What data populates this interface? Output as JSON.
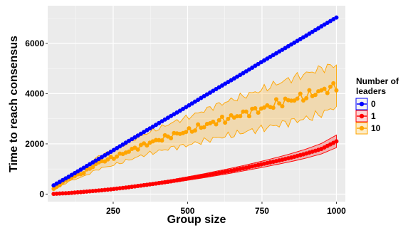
{
  "chart_data": {
    "type": "line",
    "title": "",
    "xlabel": "Group size",
    "ylabel": "Time to reach consensus",
    "xlim": [
      30,
      1030
    ],
    "ylim": [
      -300,
      7500
    ],
    "x_ticks": [
      250,
      500,
      750,
      1000
    ],
    "y_ticks": [
      0,
      2000,
      4000,
      6000
    ],
    "grid": true,
    "legend": {
      "title_lines": [
        "Number of",
        "leaders"
      ],
      "placement": "right",
      "entries": [
        "0",
        "1",
        "10"
      ]
    },
    "colors": {
      "0": "#0000ff",
      "1": "#ff0000",
      "10": "#ffa500",
      "panel": "#ebebeb",
      "grid": "#ffffff"
    },
    "x": [
      50,
      100,
      150,
      200,
      250,
      300,
      350,
      400,
      450,
      500,
      550,
      600,
      650,
      700,
      750,
      800,
      850,
      900,
      950,
      1000
    ],
    "series": [
      {
        "name": "0",
        "color": "#0000ff",
        "values": [
          350,
          690,
          1040,
          1390,
          1740,
          2100,
          2450,
          2800,
          3150,
          3500,
          3860,
          4210,
          4560,
          4910,
          5270,
          5620,
          5970,
          6320,
          6680,
          7030
        ]
      },
      {
        "name": "1",
        "color": "#ff0000",
        "values": [
          10,
          40,
          90,
          140,
          200,
          270,
          350,
          430,
          520,
          620,
          720,
          830,
          940,
          1060,
          1190,
          1320,
          1460,
          1620,
          1800,
          2100
        ],
        "lower": [
          0,
          25,
          70,
          110,
          165,
          230,
          300,
          380,
          460,
          550,
          640,
          740,
          840,
          950,
          1060,
          1180,
          1300,
          1440,
          1600,
          1850
        ],
        "upper": [
          20,
          60,
          115,
          170,
          240,
          310,
          400,
          490,
          580,
          690,
          800,
          920,
          1040,
          1170,
          1310,
          1460,
          1620,
          1800,
          2020,
          2350
        ]
      },
      {
        "name": "10",
        "color": "#ffa500",
        "values": [
          200,
          620,
          850,
          1250,
          1450,
          1700,
          1950,
          2150,
          2350,
          2500,
          2700,
          2900,
          3050,
          3250,
          3400,
          3600,
          3750,
          3900,
          4100,
          4300
        ],
        "lower": [
          150,
          500,
          700,
          1000,
          1150,
          1350,
          1550,
          1700,
          1850,
          1950,
          2100,
          2250,
          2350,
          2500,
          2600,
          2750,
          2900,
          3000,
          3200,
          3500
        ],
        "upper": [
          260,
          750,
          1050,
          1500,
          1750,
          2050,
          2350,
          2600,
          2850,
          3050,
          3300,
          3550,
          3750,
          3950,
          4150,
          4400,
          4600,
          4800,
          5000,
          5150
        ]
      }
    ]
  }
}
